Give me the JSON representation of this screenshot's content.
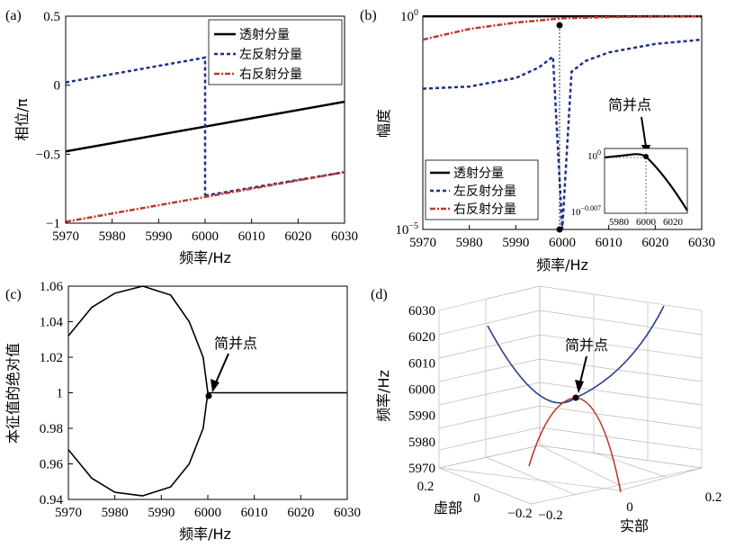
{
  "chart_data": [
    {
      "panel": "(a)",
      "type": "line",
      "xlabel": "频率/Hz",
      "ylabel": "相位/π",
      "xlim": [
        5970,
        6030
      ],
      "ylim": [
        -1,
        0.5
      ],
      "xticks": [
        "5970",
        "5980",
        "5990",
        "6000",
        "6010",
        "6020",
        "6030"
      ],
      "yticks": [
        "0.5",
        "0",
        "−0.5",
        "−1"
      ],
      "legend_position": "top-right",
      "series": [
        {
          "name": "透射分量",
          "color": "#000000",
          "style": "solid",
          "x": [
            5970,
            6030
          ],
          "y": [
            -0.48,
            -0.12
          ]
        },
        {
          "name": "左反射分量",
          "color": "#1f2f8f",
          "style": "dashed",
          "x": [
            5970,
            6000,
            6000,
            6000.0001
          ],
          "y": [
            0.02,
            0.2,
            0.2,
            -0.8
          ],
          "x2": [
            6000.0001,
            6030
          ],
          "y2": [
            -0.8,
            -0.63
          ]
        },
        {
          "name": "右反射分量",
          "color": "#c0392b",
          "style": "dashdot",
          "x": [
            5970,
            6030
          ],
          "y": [
            -0.99,
            -0.63
          ]
        }
      ]
    },
    {
      "panel": "(b)",
      "type": "line",
      "xlabel": "频率/Hz",
      "ylabel": "幅度",
      "xlim": [
        5970,
        6030
      ],
      "yscale": "log",
      "ylim_exponent": [
        -5,
        0
      ],
      "xticks": [
        "5970",
        "5980",
        "5990",
        "6000",
        "6010",
        "6020",
        "6030"
      ],
      "ytick_top": "10",
      "ytick_top_exp": "0",
      "ytick_bottom": "10",
      "ytick_bottom_exp": "−5",
      "legend_position": "bottom-left",
      "annotation": "简并点",
      "series": [
        {
          "name": "透射分量",
          "color": "#000000",
          "style": "solid",
          "x": [
            5970,
            6000,
            6030
          ],
          "y_exp": [
            -0.003,
            -0.003,
            -0.003
          ]
        },
        {
          "name": "左反射分量",
          "color": "#1f2f8f",
          "style": "dashed",
          "x": [
            5970,
            5980,
            5990,
            5995,
            5998,
            6000,
            6002,
            6005,
            6010,
            6020,
            6030
          ],
          "y_exp": [
            -1.7,
            -1.65,
            -1.45,
            -1.2,
            -0.95,
            -5,
            -1.3,
            -1.05,
            -0.85,
            -0.65,
            -0.55
          ]
        },
        {
          "name": "右反射分量",
          "color": "#c0392b",
          "style": "dashdot",
          "x": [
            5970,
            5980,
            5990,
            6000,
            6010,
            6020,
            6030
          ],
          "y_exp": [
            -0.55,
            -0.3,
            -0.15,
            -0.05,
            -0.02,
            -0.01,
            -0.005
          ]
        }
      ],
      "inset": {
        "xticks": [
          "5980",
          "6000",
          "6020"
        ],
        "ytick_top": "10",
        "ytick_top_exp": "0",
        "ytick_bottom": "10",
        "ytick_bottom_exp": "−0.007"
      }
    },
    {
      "panel": "(c)",
      "type": "line",
      "xlabel": "频率/Hz",
      "ylabel": "本征值的绝对值",
      "xlim": [
        5970,
        6030
      ],
      "ylim": [
        0.94,
        1.06
      ],
      "xticks": [
        "5970",
        "5980",
        "5990",
        "6000",
        "6010",
        "6020",
        "6030"
      ],
      "yticks": [
        "1.06",
        "1.04",
        "1.02",
        "1",
        "0.98",
        "0.96",
        "0.94"
      ],
      "annotation": "简并点",
      "series": [
        {
          "color": "#000000",
          "x": [
            5970,
            5975,
            5980,
            5986,
            5992,
            5996,
            5999,
            6000
          ],
          "y": [
            1.032,
            1.048,
            1.056,
            1.06,
            1.055,
            1.04,
            1.02,
            1.0
          ]
        },
        {
          "color": "#000000",
          "x": [
            5970,
            5975,
            5980,
            5986,
            5992,
            5996,
            5999,
            6000
          ],
          "y": [
            0.968,
            0.952,
            0.944,
            0.942,
            0.947,
            0.96,
            0.98,
            1.0
          ]
        },
        {
          "color": "#000000",
          "x": [
            6000,
            6030
          ],
          "y": [
            1.0,
            1.0
          ]
        }
      ]
    },
    {
      "panel": "(d)",
      "type": "line",
      "xlabel": "实部",
      "ylabel": "虚部",
      "zlabel": "频率/Hz",
      "zticks": [
        "6030",
        "6020",
        "6010",
        "6000",
        "5990",
        "5980",
        "5970"
      ],
      "real_ticks": [
        "−0.2",
        "0",
        "0.2"
      ],
      "imag_ticks": [
        "0.2",
        "0",
        "−0.2"
      ],
      "annotation": "简并点",
      "series": [
        {
          "color": "#2c3e8f",
          "label": "upper"
        },
        {
          "color": "#c0392b",
          "label": "lower"
        }
      ]
    }
  ]
}
